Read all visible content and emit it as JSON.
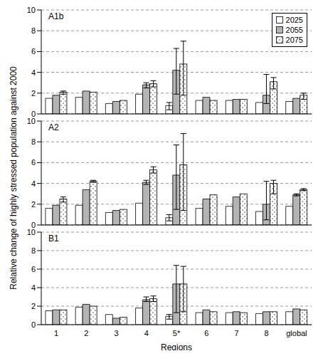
{
  "ylabel": "Relative change of highly stressed population against 2000",
  "chart_data": [
    {
      "type": "bar",
      "title": "A1b",
      "categories": [
        "1",
        "2",
        "3",
        "4",
        "5*",
        "6",
        "7",
        "8",
        "global"
      ],
      "ylim": [
        0,
        10
      ],
      "yticks": [
        0,
        2,
        4,
        6,
        8,
        10
      ],
      "grid": true,
      "legend": "upper right",
      "tick_labels": "y",
      "series": [
        {
          "name": "2025",
          "color": "#ffffff",
          "values": [
            1.5,
            1.6,
            1.0,
            1.9,
            0.8,
            1.3,
            1.3,
            1.1,
            1.2
          ],
          "errors": [
            null,
            null,
            null,
            null,
            [
              0.4,
              1.1
            ],
            null,
            null,
            null,
            null
          ]
        },
        {
          "name": "2055",
          "color": "#b4b4b4",
          "values": [
            1.8,
            2.2,
            1.2,
            2.8,
            4.2,
            1.6,
            1.4,
            1.8,
            1.5
          ],
          "errors": [
            null,
            null,
            null,
            [
              2.5,
              3.0
            ],
            [
              1.9,
              6.3
            ],
            null,
            null,
            [
              1.0,
              3.8
            ],
            null
          ]
        },
        {
          "name": "2075",
          "color": "#ffffff",
          "values": [
            2.1,
            2.1,
            1.3,
            2.9,
            4.8,
            1.3,
            1.4,
            3.1,
            1.8
          ],
          "errors": [
            [
              1.9,
              2.2
            ],
            null,
            null,
            [
              2.6,
              3.2
            ],
            [
              1.8,
              7.0
            ],
            null,
            null,
            [
              2.4,
              3.5
            ],
            [
              1.4,
              2.0
            ]
          ]
        }
      ]
    },
    {
      "type": "bar",
      "title": "A2",
      "categories": [
        "1",
        "2",
        "3",
        "4",
        "5*",
        "6",
        "7",
        "8",
        "global"
      ],
      "ylim": [
        0,
        10
      ],
      "yticks": [
        0,
        2,
        4,
        6,
        8,
        10
      ],
      "grid": true,
      "tick_labels": "y",
      "series": [
        {
          "name": "2025",
          "color": "#ffffff",
          "values": [
            1.6,
            1.9,
            1.2,
            2.1,
            0.7,
            1.6,
            1.8,
            1.3,
            1.8
          ],
          "errors": [
            null,
            null,
            null,
            null,
            [
              0.4,
              1.0
            ],
            null,
            null,
            null,
            null
          ]
        },
        {
          "name": "2055",
          "color": "#b4b4b4",
          "values": [
            1.9,
            3.4,
            1.4,
            4.1,
            4.8,
            2.5,
            2.7,
            2.0,
            2.9
          ],
          "errors": [
            null,
            null,
            null,
            [
              3.9,
              4.3
            ],
            [
              1.5,
              7.7
            ],
            null,
            null,
            [
              0.5,
              4.2
            ],
            [
              2.8,
              3.0
            ]
          ]
        },
        {
          "name": "2075",
          "color": "#ffffff",
          "values": [
            2.5,
            4.2,
            1.5,
            5.3,
            5.8,
            2.9,
            3.0,
            4.0,
            3.4
          ],
          "errors": [
            [
              2.2,
              2.7
            ],
            [
              4.1,
              4.3
            ],
            null,
            [
              5.0,
              5.6
            ],
            [
              1.4,
              8.8
            ],
            null,
            null,
            [
              3.0,
              4.3
            ],
            [
              3.3,
              3.5
            ]
          ]
        }
      ]
    },
    {
      "type": "bar",
      "title": "B1",
      "xlabel": "Regions",
      "categories": [
        "1",
        "2",
        "3",
        "4",
        "5*",
        "6",
        "7",
        "8",
        "global"
      ],
      "ylim": [
        0,
        10
      ],
      "yticks": [
        0,
        2,
        4,
        6,
        8,
        10
      ],
      "grid": true,
      "series": [
        {
          "name": "2025",
          "color": "#ffffff",
          "values": [
            1.5,
            1.9,
            1.1,
            1.8,
            0.9,
            1.3,
            1.3,
            1.2,
            1.4
          ],
          "errors": [
            null,
            null,
            null,
            null,
            [
              0.6,
              1.1
            ],
            null,
            null,
            null,
            null
          ]
        },
        {
          "name": "2055",
          "color": "#b4b4b4",
          "values": [
            1.6,
            2.2,
            0.7,
            2.7,
            4.4,
            1.6,
            1.4,
            1.4,
            1.7
          ],
          "errors": [
            null,
            null,
            null,
            [
              2.5,
              3.0
            ],
            [
              1.3,
              6.4
            ],
            null,
            null,
            null,
            null
          ]
        },
        {
          "name": "2075",
          "color": "#ffffff",
          "values": [
            1.6,
            2.0,
            0.8,
            2.8,
            4.4,
            1.4,
            1.3,
            1.4,
            1.6
          ],
          "errors": [
            null,
            null,
            null,
            [
              2.5,
              3.1
            ],
            [
              1.4,
              6.3
            ],
            null,
            null,
            null,
            null
          ]
        }
      ]
    }
  ]
}
